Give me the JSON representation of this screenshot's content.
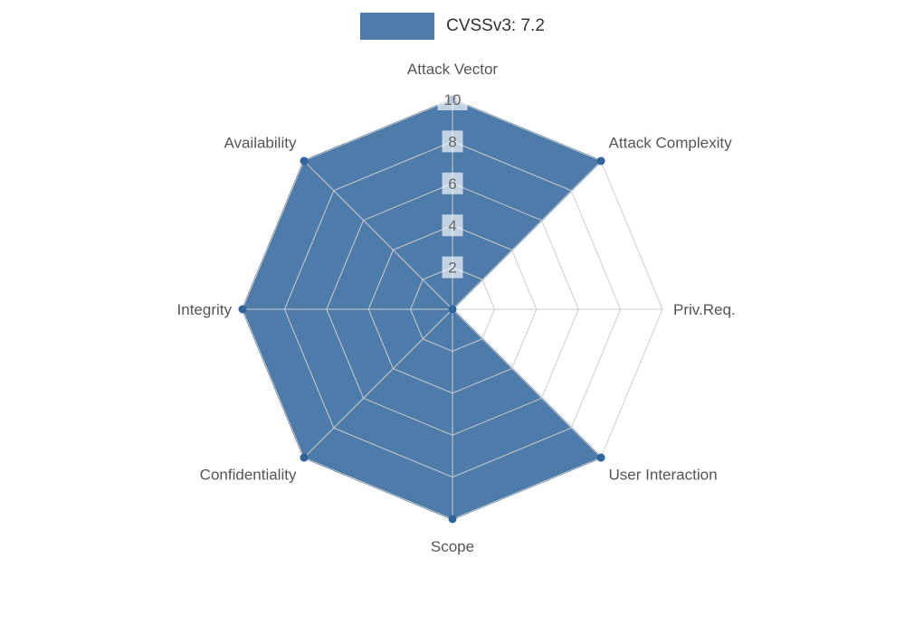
{
  "legend": {
    "label": "CVSSv3: 7.2"
  },
  "chart_data": {
    "type": "radar",
    "title": "CVSSv3: 7.2",
    "categories": [
      "Attack Vector",
      "Attack Complexity",
      "Priv.Req.",
      "User Interaction",
      "Scope",
      "Confidentiality",
      "Integrity",
      "Availability"
    ],
    "series": [
      {
        "name": "CVSSv3: 7.2",
        "values": [
          10,
          10,
          0,
          10,
          10,
          10,
          10,
          10
        ]
      }
    ],
    "ylim": [
      0,
      10
    ],
    "ticks": [
      2,
      4,
      6,
      8,
      10
    ],
    "grid": true,
    "legend_position": "top-center",
    "series_color": "#2f659b",
    "grid_color": "#cccccc",
    "label_color": "#555555",
    "tick_color": "#666666"
  }
}
